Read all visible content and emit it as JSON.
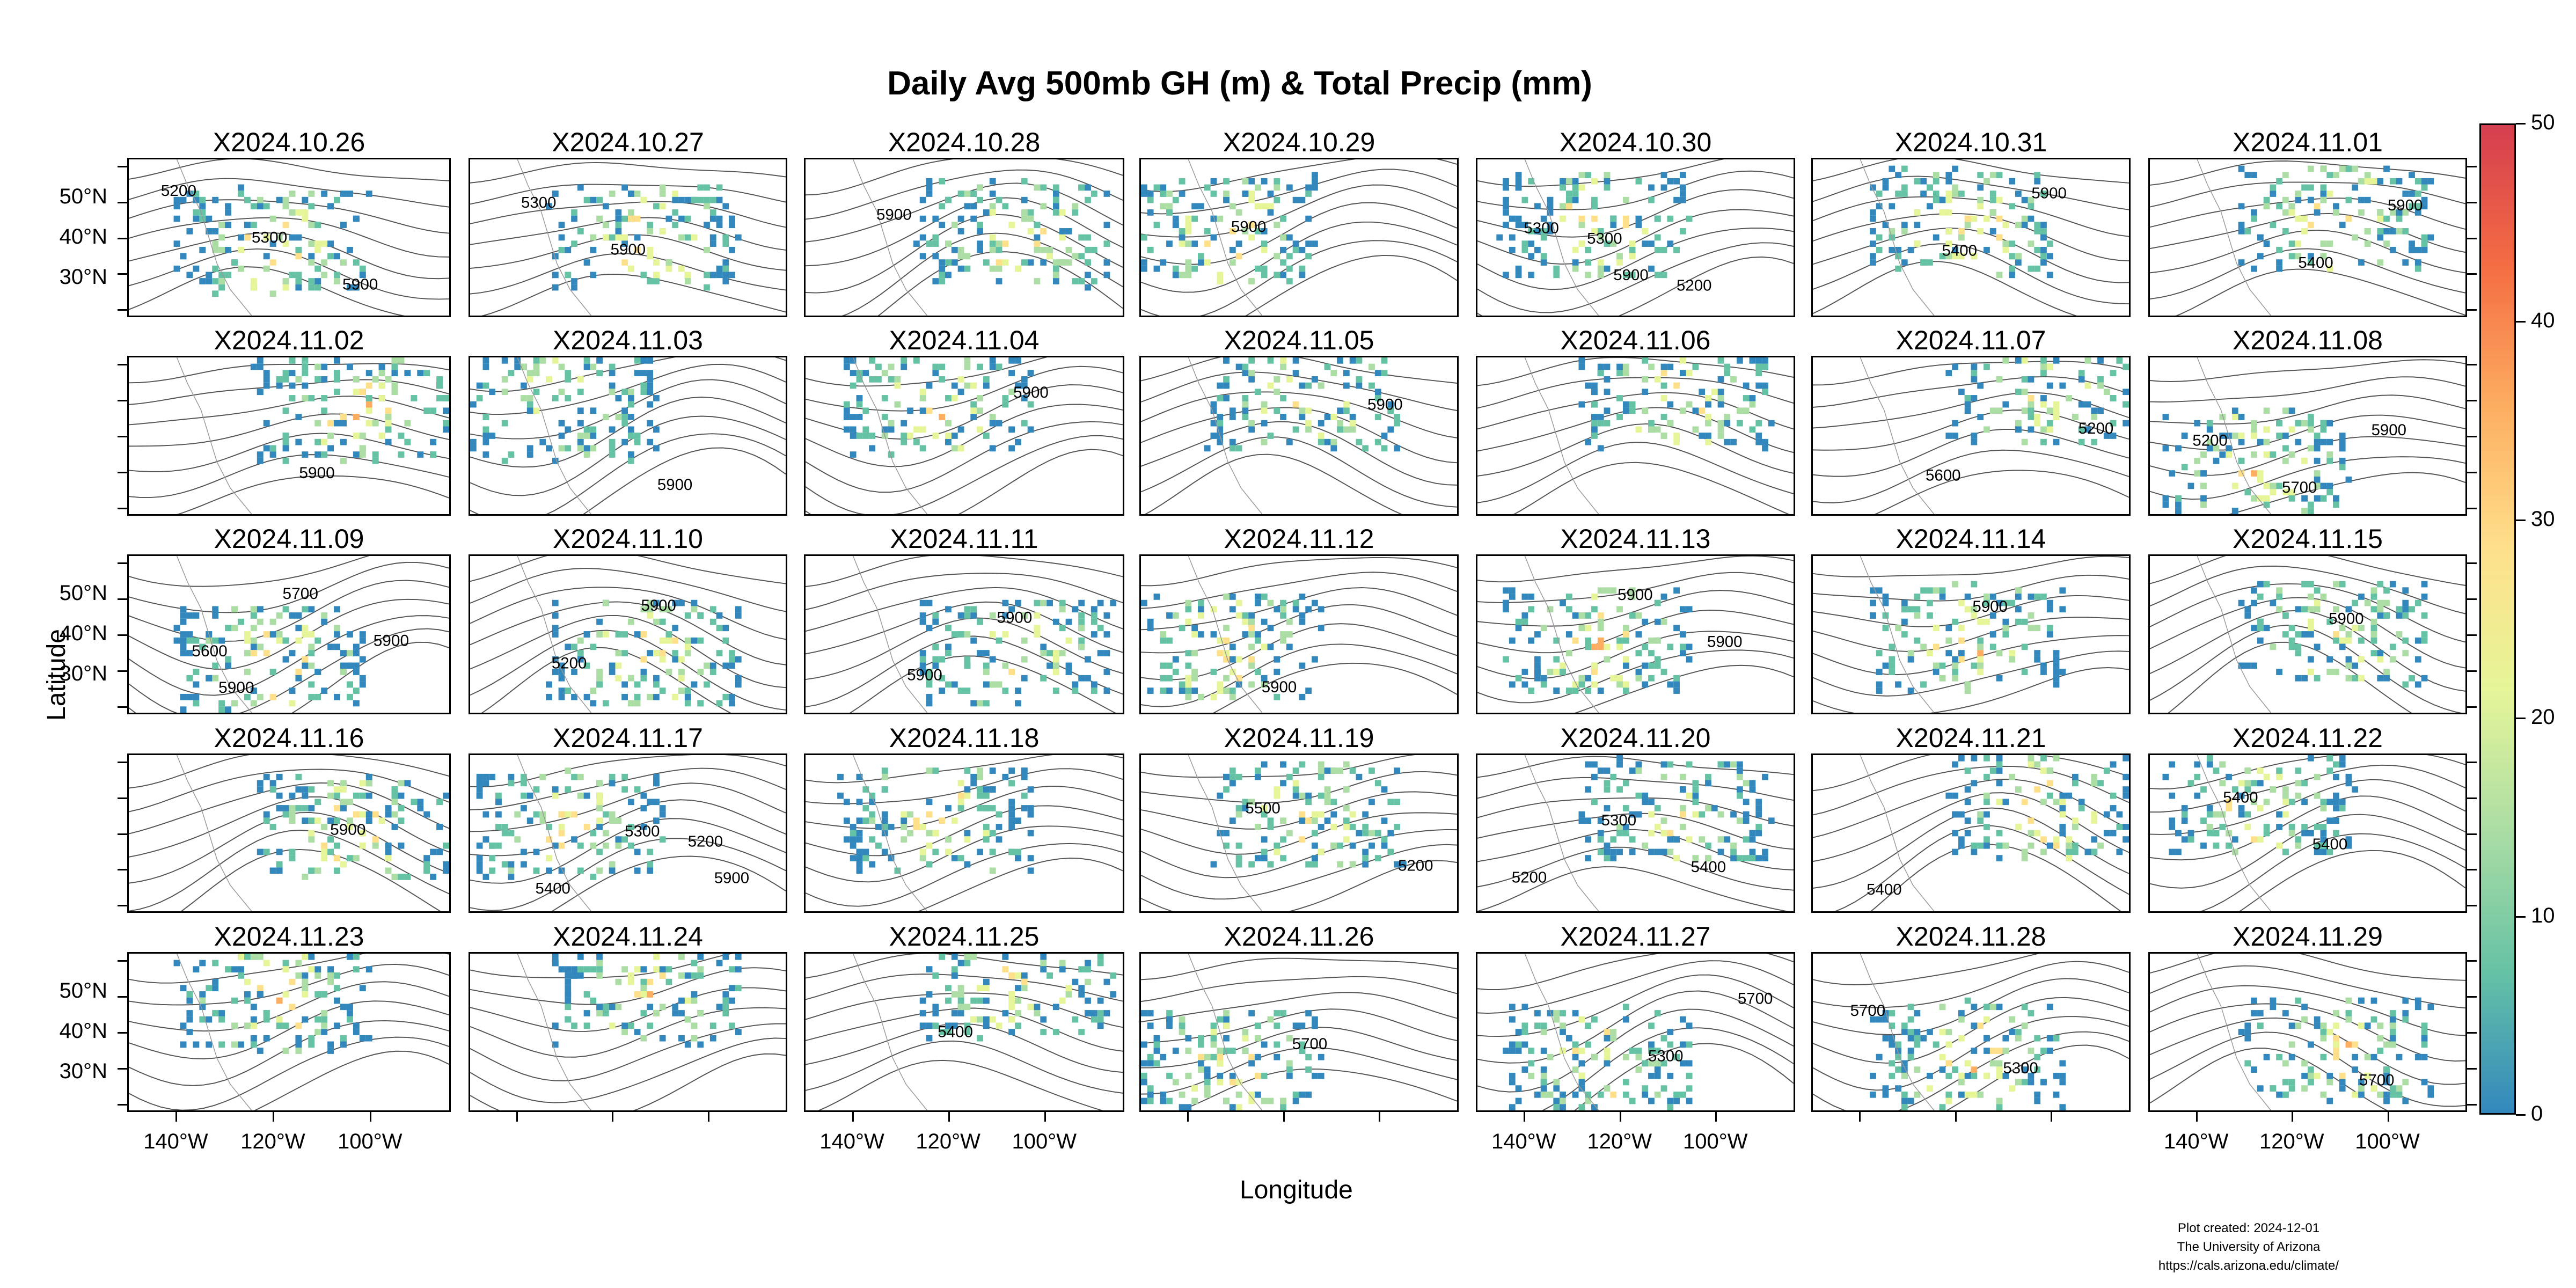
{
  "title": "Daily Avg 500mb GH (m) & Total Precip (mm)",
  "x_axis_label": "Longitude",
  "y_axis_label": "Latitude",
  "lat_ticks": [
    "50°N",
    "40°N",
    "30°N"
  ],
  "lon_ticks": [
    "140°W",
    "120°W",
    "100°W"
  ],
  "colorbar": {
    "ticks": [
      "0",
      "10",
      "20",
      "30",
      "40",
      "50"
    ],
    "min": 0,
    "max": 50,
    "colors_low_to_high": [
      "#3288bd",
      "#66c2a5",
      "#abdda4",
      "#e6f598",
      "#fee08b",
      "#fdae61",
      "#f46d43",
      "#d53e4f"
    ]
  },
  "panels": [
    {
      "date": "X2024.10.26",
      "contours": [
        "5200",
        "5300",
        "5900"
      ]
    },
    {
      "date": "X2024.10.27",
      "contours": [
        "5300",
        "5900"
      ]
    },
    {
      "date": "X2024.10.28",
      "contours": [
        "5900"
      ]
    },
    {
      "date": "X2024.10.29",
      "contours": [
        "5900"
      ]
    },
    {
      "date": "X2024.10.30",
      "contours": [
        "5300",
        "5200",
        "5300",
        "5900"
      ]
    },
    {
      "date": "X2024.10.31",
      "contours": [
        "5400",
        "5900"
      ]
    },
    {
      "date": "X2024.11.01",
      "contours": [
        "5400",
        "5900"
      ]
    },
    {
      "date": "X2024.11.02",
      "contours": [
        "5900"
      ]
    },
    {
      "date": "X2024.11.03",
      "contours": [
        "5900"
      ]
    },
    {
      "date": "X2024.11.04",
      "contours": [
        "5900"
      ]
    },
    {
      "date": "X2024.11.05",
      "contours": [
        "5900"
      ]
    },
    {
      "date": "X2024.11.06",
      "contours": []
    },
    {
      "date": "X2024.11.07",
      "contours": [
        "5200",
        "5600"
      ]
    },
    {
      "date": "X2024.11.08",
      "contours": [
        "5200",
        "5700",
        "5900"
      ]
    },
    {
      "date": "X2024.11.09",
      "contours": [
        "5600",
        "5700",
        "5900",
        "5900"
      ]
    },
    {
      "date": "X2024.11.10",
      "contours": [
        "5200",
        "5900"
      ]
    },
    {
      "date": "X2024.11.11",
      "contours": [
        "5900",
        "5900"
      ]
    },
    {
      "date": "X2024.11.12",
      "contours": [
        "5900"
      ]
    },
    {
      "date": "X2024.11.13",
      "contours": [
        "5900",
        "5900"
      ]
    },
    {
      "date": "X2024.11.14",
      "contours": [
        "5900"
      ]
    },
    {
      "date": "X2024.11.15",
      "contours": [
        "5900"
      ]
    },
    {
      "date": "X2024.11.16",
      "contours": [
        "5900"
      ]
    },
    {
      "date": "X2024.11.17",
      "contours": [
        "5200",
        "5400",
        "5300",
        "5900"
      ]
    },
    {
      "date": "X2024.11.18",
      "contours": []
    },
    {
      "date": "X2024.11.19",
      "contours": [
        "5200",
        "5500"
      ]
    },
    {
      "date": "X2024.11.20",
      "contours": [
        "5200",
        "5300",
        "5400"
      ]
    },
    {
      "date": "X2024.11.21",
      "contours": [
        "5400"
      ]
    },
    {
      "date": "X2024.11.22",
      "contours": [
        "5400",
        "5400"
      ]
    },
    {
      "date": "X2024.11.23",
      "contours": []
    },
    {
      "date": "X2024.11.24",
      "contours": []
    },
    {
      "date": "X2024.11.25",
      "contours": [
        "5400"
      ]
    },
    {
      "date": "X2024.11.26",
      "contours": [
        "5700"
      ]
    },
    {
      "date": "X2024.11.27",
      "contours": [
        "5300",
        "5700"
      ]
    },
    {
      "date": "X2024.11.28",
      "contours": [
        "5300",
        "5700"
      ]
    },
    {
      "date": "X2024.11.29",
      "contours": [
        "5700"
      ]
    }
  ],
  "credits": [
    "Plot created: 2024-12-01",
    "The University of Arizona",
    "https://cals.arizona.edu/climate/"
  ]
}
